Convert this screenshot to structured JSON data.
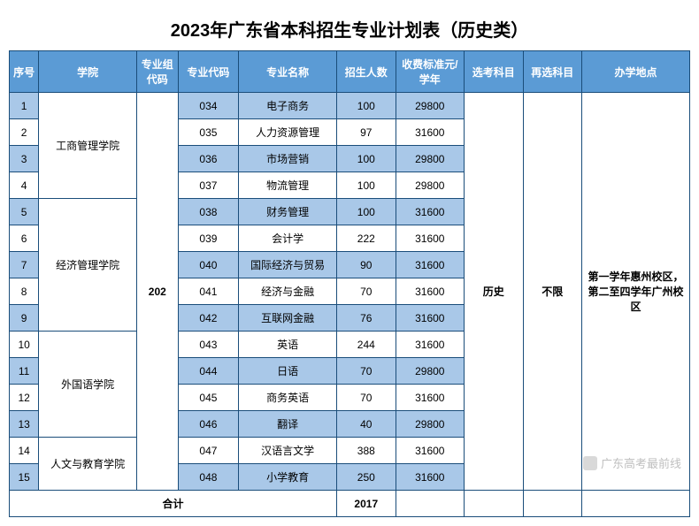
{
  "title": "2023年广东省本科招生专业计划表（历史类）",
  "headers": {
    "seq": "序号",
    "college": "学院",
    "groupcode": "专业组代码",
    "majorcode": "专业代码",
    "majorname": "专业名称",
    "enroll": "招生人数",
    "fee": "收费标准元/学年",
    "sel1": "选考科目",
    "sel2": "再选科目",
    "location": "办学地点"
  },
  "groupcode": "202",
  "sel1_value": "历史",
  "sel2_value": "不限",
  "location_value": "第一学年惠州校区，第二至四学年广州校区",
  "colleges": [
    {
      "name": "工商管理学院",
      "rowspan": 4
    },
    {
      "name": "经济管理学院",
      "rowspan": 5
    },
    {
      "name": "外国语学院",
      "rowspan": 4
    },
    {
      "name": "人文与教育学院",
      "rowspan": 2
    }
  ],
  "rows": [
    {
      "seq": "1",
      "college_idx": 0,
      "majorcode": "034",
      "majorname": "电子商务",
      "enroll": "100",
      "fee": "29800"
    },
    {
      "seq": "2",
      "college_idx": 0,
      "majorcode": "035",
      "majorname": "人力资源管理",
      "enroll": "97",
      "fee": "31600"
    },
    {
      "seq": "3",
      "college_idx": 0,
      "majorcode": "036",
      "majorname": "市场营销",
      "enroll": "100",
      "fee": "29800"
    },
    {
      "seq": "4",
      "college_idx": 0,
      "majorcode": "037",
      "majorname": "物流管理",
      "enroll": "100",
      "fee": "29800"
    },
    {
      "seq": "5",
      "college_idx": 1,
      "majorcode": "038",
      "majorname": "财务管理",
      "enroll": "100",
      "fee": "31600"
    },
    {
      "seq": "6",
      "college_idx": 1,
      "majorcode": "039",
      "majorname": "会计学",
      "enroll": "222",
      "fee": "31600"
    },
    {
      "seq": "7",
      "college_idx": 1,
      "majorcode": "040",
      "majorname": "国际经济与贸易",
      "enroll": "90",
      "fee": "31600"
    },
    {
      "seq": "8",
      "college_idx": 1,
      "majorcode": "041",
      "majorname": "经济与金融",
      "enroll": "70",
      "fee": "31600"
    },
    {
      "seq": "9",
      "college_idx": 1,
      "majorcode": "042",
      "majorname": "互联网金融",
      "enroll": "76",
      "fee": "31600"
    },
    {
      "seq": "10",
      "college_idx": 2,
      "majorcode": "043",
      "majorname": "英语",
      "enroll": "244",
      "fee": "31600"
    },
    {
      "seq": "11",
      "college_idx": 2,
      "majorcode": "044",
      "majorname": "日语",
      "enroll": "70",
      "fee": "29800"
    },
    {
      "seq": "12",
      "college_idx": 2,
      "majorcode": "045",
      "majorname": "商务英语",
      "enroll": "70",
      "fee": "31600"
    },
    {
      "seq": "13",
      "college_idx": 2,
      "majorcode": "046",
      "majorname": "翻译",
      "enroll": "40",
      "fee": "29800"
    },
    {
      "seq": "14",
      "college_idx": 3,
      "majorcode": "047",
      "majorname": "汉语言文学",
      "enroll": "388",
      "fee": "31600"
    },
    {
      "seq": "15",
      "college_idx": 3,
      "majorcode": "048",
      "majorname": "小学教育",
      "enroll": "250",
      "fee": "31600"
    }
  ],
  "total": {
    "label": "合计",
    "enroll": "2017"
  },
  "watermark": "广东高考最前线",
  "colors": {
    "header_bg": "#5b9bd5",
    "stripe_even": "#a9c8e8",
    "stripe_odd": "#ffffff",
    "border": "#1a4d7a"
  }
}
